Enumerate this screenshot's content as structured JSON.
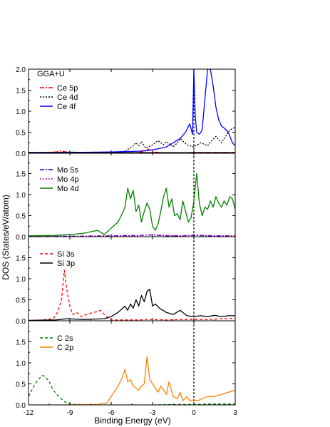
{
  "figure": {
    "ylabel": "DOS (States/eV/atom)",
    "xlabel": "Binding Energy (eV)",
    "annotation": "GGA+U"
  },
  "chart_data": [
    {
      "type": "line",
      "xlim": [
        -12,
        3
      ],
      "ylim": [
        0,
        2.0
      ],
      "yticks": [
        0.0,
        0.5,
        1.0,
        1.5,
        2.0
      ],
      "legend_position": "top-left",
      "series": [
        {
          "name": "Ce 5p",
          "color": "#ff0000",
          "dash": "dashdot",
          "x": [
            -12,
            -11,
            -10,
            -9.6,
            -9.2,
            -9,
            -8,
            -6,
            -4.5,
            -3.5,
            -3.3,
            -3,
            -2,
            -1,
            0,
            1,
            2,
            3
          ],
          "y": [
            0.01,
            0.02,
            0.03,
            0.06,
            0.02,
            0.01,
            0.0,
            0.0,
            0.0,
            0.05,
            0.1,
            0.03,
            0.01,
            0.01,
            0.02,
            0.02,
            0.02,
            0.02
          ]
        },
        {
          "name": "Ce 4d",
          "color": "#000000",
          "dash": "dot",
          "x": [
            -12,
            -10,
            -9.2,
            -8,
            -6,
            -5,
            -4.5,
            -4.2,
            -4,
            -3.8,
            -3.5,
            -3,
            -2.6,
            -2.2,
            -2,
            -1.5,
            -1.2,
            -1,
            -0.5,
            0,
            0.5,
            1,
            1.3,
            1.6,
            2,
            2.3,
            2.6,
            3
          ],
          "y": [
            0.0,
            0.02,
            0.03,
            0.02,
            0.02,
            0.05,
            0.15,
            0.25,
            0.18,
            0.28,
            0.12,
            0.2,
            0.3,
            0.2,
            0.28,
            0.15,
            0.25,
            0.35,
            0.2,
            0.15,
            0.25,
            0.18,
            0.3,
            0.4,
            0.25,
            0.4,
            0.55,
            0.62
          ]
        },
        {
          "name": "Ce 4f",
          "color": "#0000ff",
          "dash": "solid",
          "x": [
            -12,
            -9,
            -6,
            -4,
            -3,
            -2,
            -1.5,
            -1,
            -0.6,
            -0.3,
            -0.1,
            0,
            0.1,
            0.2,
            0.4,
            0.6,
            0.8,
            1.0,
            1.2,
            1.4,
            1.6,
            1.8,
            2.0,
            2.2,
            2.5,
            2.8,
            3
          ],
          "y": [
            0.02,
            0.02,
            0.03,
            0.05,
            0.08,
            0.15,
            0.25,
            0.35,
            0.5,
            0.7,
            0.45,
            2.0,
            0.9,
            0.5,
            0.45,
            0.55,
            1.3,
            2.0,
            2.0,
            1.6,
            1.1,
            0.8,
            0.65,
            0.6,
            0.5,
            0.25,
            0.18
          ]
        }
      ]
    },
    {
      "type": "line",
      "xlim": [
        -12,
        3
      ],
      "ylim": [
        0,
        2.0
      ],
      "yticks": [
        0.0,
        0.5,
        1.0,
        1.5
      ],
      "legend_position": "top-left",
      "series": [
        {
          "name": "Mo 5s",
          "color": "#0000cc",
          "dash": "dashdot",
          "x": [
            -12,
            -9,
            -6,
            -4,
            -3,
            -2,
            -1,
            0,
            1,
            2,
            3
          ],
          "y": [
            0.01,
            0.01,
            0.02,
            0.03,
            0.04,
            0.02,
            0.02,
            0.03,
            0.02,
            0.02,
            0.02
          ]
        },
        {
          "name": "Mo 4p",
          "color": "#cc00cc",
          "dash": "dot",
          "x": [
            -12,
            -9,
            -6,
            -4,
            -3,
            -2,
            -1,
            0,
            1,
            2,
            3
          ],
          "y": [
            0.01,
            0.01,
            0.02,
            0.02,
            0.05,
            0.03,
            0.02,
            0.04,
            0.03,
            0.02,
            0.02
          ]
        },
        {
          "name": "Mo 4d",
          "color": "#008000",
          "dash": "solid",
          "x": [
            -12,
            -10,
            -9,
            -8,
            -7,
            -6.5,
            -6,
            -5.5,
            -5.2,
            -5,
            -4.8,
            -4.6,
            -4.4,
            -4.2,
            -4,
            -3.8,
            -3.6,
            -3.4,
            -3.2,
            -3,
            -2.8,
            -2.6,
            -2.4,
            -2.2,
            -2,
            -1.8,
            -1.6,
            -1.4,
            -1.2,
            -1,
            -0.8,
            -0.6,
            -0.4,
            -0.2,
            0,
            0.2,
            0.4,
            0.6,
            0.8,
            1,
            1.2,
            1.4,
            1.6,
            1.8,
            2,
            2.2,
            2.4,
            2.6,
            2.8,
            3
          ],
          "y": [
            0.02,
            0.03,
            0.05,
            0.08,
            0.15,
            0.05,
            0.2,
            0.35,
            0.55,
            0.7,
            1.15,
            0.9,
            1.1,
            0.6,
            0.75,
            0.35,
            0.6,
            0.8,
            0.65,
            0.25,
            0.15,
            0.3,
            0.6,
            0.95,
            1.15,
            0.7,
            0.9,
            0.5,
            0.55,
            0.4,
            0.85,
            0.6,
            0.35,
            0.45,
            0.85,
            1.5,
            0.8,
            0.5,
            0.7,
            0.65,
            0.85,
            0.7,
            0.95,
            0.8,
            0.7,
            0.85,
            0.75,
            0.95,
            0.9,
            0.65
          ]
        }
      ]
    },
    {
      "type": "line",
      "xlim": [
        -12,
        3
      ],
      "ylim": [
        0,
        2.0
      ],
      "yticks": [
        0.0,
        0.5,
        1.0,
        1.5
      ],
      "legend_position": "top-left",
      "series": [
        {
          "name": "Si 3s",
          "color": "#ff0000",
          "dash": "dash",
          "x": [
            -12,
            -11,
            -10.2,
            -9.9,
            -9.6,
            -9.4,
            -9.2,
            -9.0,
            -8.8,
            -8.5,
            -8.2,
            -8,
            -7.5,
            -7,
            -6.8,
            -6.5,
            -6.2,
            -6,
            -5,
            -4,
            -3,
            -2,
            -1,
            0,
            1,
            2,
            3
          ],
          "y": [
            0.0,
            0.02,
            0.05,
            0.2,
            0.5,
            1.2,
            0.7,
            0.35,
            0.15,
            0.2,
            0.1,
            0.12,
            0.18,
            0.22,
            0.25,
            0.15,
            0.05,
            0.02,
            0.02,
            0.02,
            0.03,
            0.02,
            0.03,
            0.03,
            0.03,
            0.05,
            0.06
          ]
        },
        {
          "name": "Si 3p",
          "color": "#000000",
          "dash": "solid",
          "x": [
            -12,
            -10,
            -9.2,
            -8,
            -6.5,
            -6,
            -5.5,
            -5,
            -4.8,
            -4.6,
            -4.4,
            -4.2,
            -4,
            -3.8,
            -3.6,
            -3.4,
            -3.2,
            -3,
            -2.8,
            -2.5,
            -2,
            -1.5,
            -1,
            -0.5,
            0,
            0.5,
            1,
            1.5,
            2,
            2.5,
            3
          ],
          "y": [
            0.01,
            0.02,
            0.05,
            0.03,
            0.05,
            0.1,
            0.2,
            0.35,
            0.25,
            0.4,
            0.3,
            0.5,
            0.35,
            0.6,
            0.45,
            0.7,
            0.75,
            0.35,
            0.4,
            0.3,
            0.2,
            0.15,
            0.25,
            0.12,
            0.1,
            0.12,
            0.1,
            0.13,
            0.1,
            0.12,
            0.12
          ]
        }
      ]
    },
    {
      "type": "line",
      "xlim": [
        -12,
        3
      ],
      "ylim": [
        0,
        2.0
      ],
      "yticks": [
        0.0,
        0.5,
        1.0,
        1.5
      ],
      "legend_position": "top-left",
      "series": [
        {
          "name": "C 2s",
          "color": "#008000",
          "dash": "dash",
          "x": [
            -12,
            -11.6,
            -11.3,
            -11,
            -10.8,
            -10.5,
            -10.2,
            -9.8,
            -9.4,
            -9.0,
            -8.5,
            -7,
            -5,
            -3,
            -1,
            0,
            1,
            2,
            3
          ],
          "y": [
            0.2,
            0.45,
            0.6,
            0.7,
            0.68,
            0.55,
            0.35,
            0.2,
            0.08,
            0.02,
            0.01,
            0.0,
            0.0,
            0.0,
            0.01,
            0.01,
            0.02,
            0.02,
            0.02
          ]
        },
        {
          "name": "C 2p",
          "color": "#ff8000",
          "dash": "solid",
          "x": [
            -12,
            -9,
            -7,
            -6.3,
            -6,
            -5.8,
            -5.5,
            -5.2,
            -5.0,
            -4.8,
            -4.6,
            -4.4,
            -4.2,
            -4.0,
            -3.8,
            -3.6,
            -3.4,
            -3.2,
            -3.0,
            -2.8,
            -2.6,
            -2.4,
            -2.2,
            -2.0,
            -1.8,
            -1.5,
            -1.2,
            -1.0,
            -0.8,
            -0.5,
            -0.3,
            0,
            0.3,
            0.6,
            1,
            1.5,
            2,
            2.5,
            3
          ],
          "y": [
            0.0,
            0.0,
            0.01,
            0.05,
            0.2,
            0.3,
            0.45,
            0.65,
            0.85,
            0.55,
            0.6,
            0.45,
            0.4,
            0.35,
            0.45,
            0.5,
            1.15,
            0.6,
            0.5,
            0.4,
            0.3,
            0.45,
            0.35,
            0.25,
            0.55,
            0.2,
            0.15,
            0.3,
            0.1,
            0.2,
            0.1,
            0.12,
            0.1,
            0.15,
            0.2,
            0.2,
            0.25,
            0.3,
            0.35
          ]
        }
      ]
    }
  ]
}
